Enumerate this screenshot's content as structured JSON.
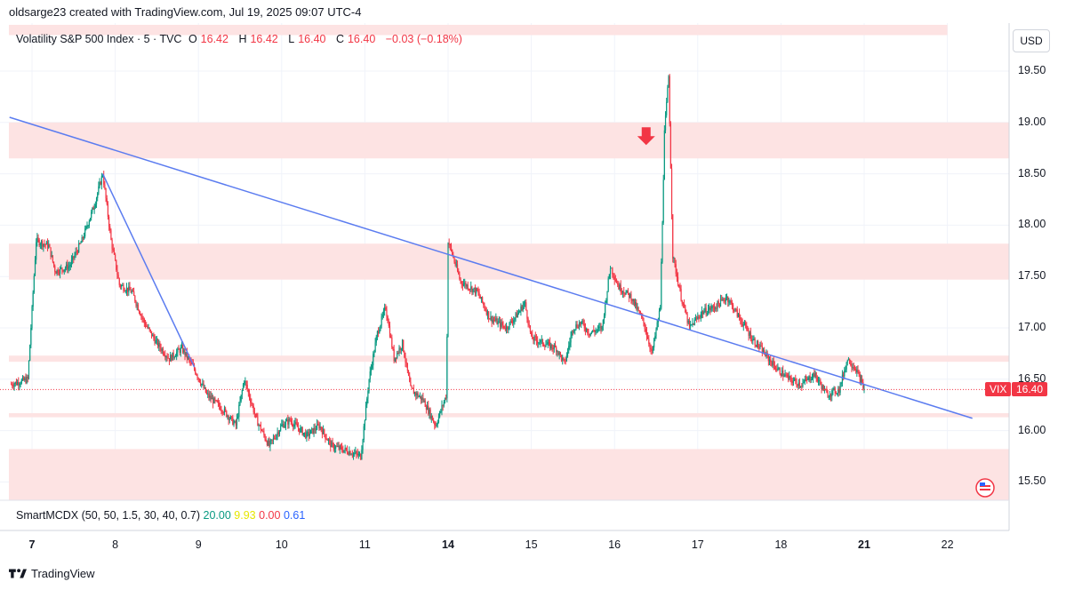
{
  "credit_line": "oldsarge23 created with TradingView.com, Jul 19, 2025 09:07 UTC-4",
  "legend": {
    "symbol": "Volatility S&P 500 Index · 5 · TVC",
    "o_key": "O",
    "o_val": "16.42",
    "h_key": "H",
    "h_val": "16.42",
    "l_key": "L",
    "l_val": "16.40",
    "c_key": "C",
    "c_val": "16.40",
    "change": "−0.03 (−0.18%)"
  },
  "indicator": {
    "name": "SmartMCDX (50, 50, 1.5, 30, 40, 0.7)",
    "v1": "20.00",
    "v2": "9.93",
    "v3": "0.00",
    "v4": "0.61",
    "colors": [
      "#089981",
      "#e6e600",
      "#f23645",
      "#2962ff"
    ]
  },
  "currency_button": "USD",
  "last_price_tag": {
    "symbol": "VIX",
    "price": "16.40"
  },
  "brand_name": "TradingView",
  "colors": {
    "up": "#089981",
    "down": "#f23645",
    "zone": "#fde3e3",
    "trend": "#5b7cf0",
    "grid": "#f0f3fa"
  },
  "chart_data": {
    "type": "candlestick",
    "symbol": "VIX",
    "timeframe": "5",
    "y_range": [
      15.35,
      19.75
    ],
    "y_ticks": [
      "19.50",
      "19.00",
      "18.50",
      "18.00",
      "17.50",
      "17.00",
      "16.50",
      "16.00",
      "15.50"
    ],
    "x_ticks": [
      {
        "label": "7",
        "bold": true,
        "day": 0
      },
      {
        "label": "8",
        "bold": false,
        "day": 1
      },
      {
        "label": "9",
        "bold": false,
        "day": 2
      },
      {
        "label": "10",
        "bold": false,
        "day": 3
      },
      {
        "label": "11",
        "bold": false,
        "day": 4
      },
      {
        "label": "14",
        "bold": true,
        "day": 5
      },
      {
        "label": "15",
        "bold": false,
        "day": 6
      },
      {
        "label": "16",
        "bold": false,
        "day": 7
      },
      {
        "label": "17",
        "bold": false,
        "day": 8
      },
      {
        "label": "18",
        "bold": false,
        "day": 9
      },
      {
        "label": "21",
        "bold": true,
        "day": 10
      },
      {
        "label": "22",
        "bold": false,
        "day": 11
      }
    ],
    "price_path": [
      [
        -0.25,
        16.45
      ],
      [
        -0.05,
        16.5
      ],
      [
        0.05,
        17.85
      ],
      [
        0.2,
        17.8
      ],
      [
        0.28,
        17.55
      ],
      [
        0.45,
        17.6
      ],
      [
        0.6,
        17.85
      ],
      [
        0.75,
        18.2
      ],
      [
        0.85,
        18.5
      ],
      [
        0.95,
        17.85
      ],
      [
        1.05,
        17.42
      ],
      [
        1.2,
        17.35
      ],
      [
        1.35,
        17.05
      ],
      [
        1.5,
        16.85
      ],
      [
        1.65,
        16.7
      ],
      [
        1.8,
        16.8
      ],
      [
        1.95,
        16.6
      ],
      [
        2.1,
        16.35
      ],
      [
        2.3,
        16.2
      ],
      [
        2.45,
        16.05
      ],
      [
        2.55,
        16.5
      ],
      [
        2.7,
        16.1
      ],
      [
        2.85,
        15.85
      ],
      [
        3.0,
        16.05
      ],
      [
        3.1,
        16.1
      ],
      [
        3.3,
        15.95
      ],
      [
        3.45,
        16.05
      ],
      [
        3.6,
        15.85
      ],
      [
        3.8,
        15.8
      ],
      [
        3.95,
        15.75
      ],
      [
        4.05,
        16.5
      ],
      [
        4.15,
        16.95
      ],
      [
        4.25,
        17.2
      ],
      [
        4.35,
        16.7
      ],
      [
        4.45,
        16.85
      ],
      [
        4.55,
        16.4
      ],
      [
        4.7,
        16.3
      ],
      [
        4.85,
        16.05
      ],
      [
        4.98,
        16.35
      ],
      [
        5.0,
        17.85
      ],
      [
        5.15,
        17.45
      ],
      [
        5.35,
        17.35
      ],
      [
        5.5,
        17.1
      ],
      [
        5.7,
        17.0
      ],
      [
        5.85,
        17.15
      ],
      [
        5.92,
        17.25
      ],
      [
        6.0,
        16.9
      ],
      [
        6.15,
        16.85
      ],
      [
        6.3,
        16.8
      ],
      [
        6.4,
        16.65
      ],
      [
        6.5,
        17.0
      ],
      [
        6.6,
        17.05
      ],
      [
        6.7,
        16.95
      ],
      [
        6.85,
        17.0
      ],
      [
        6.95,
        17.6
      ],
      [
        7.05,
        17.4
      ],
      [
        7.2,
        17.3
      ],
      [
        7.35,
        17.05
      ],
      [
        7.45,
        16.75
      ],
      [
        7.55,
        17.2
      ],
      [
        7.6,
        18.9
      ],
      [
        7.65,
        19.45
      ],
      [
        7.7,
        17.7
      ],
      [
        7.8,
        17.3
      ],
      [
        7.9,
        17.0
      ],
      [
        8.05,
        17.15
      ],
      [
        8.2,
        17.2
      ],
      [
        8.35,
        17.3
      ],
      [
        8.5,
        17.1
      ],
      [
        8.65,
        16.9
      ],
      [
        8.8,
        16.75
      ],
      [
        8.95,
        16.6
      ],
      [
        9.1,
        16.5
      ],
      [
        9.25,
        16.45
      ],
      [
        9.4,
        16.55
      ],
      [
        9.55,
        16.35
      ],
      [
        9.7,
        16.4
      ],
      [
        9.8,
        16.7
      ],
      [
        9.9,
        16.6
      ],
      [
        10.0,
        16.4
      ]
    ],
    "trendlines": [
      {
        "from": [
          -0.27,
          19.05
        ],
        "to": [
          11.3,
          16.12
        ]
      },
      {
        "from": [
          0.85,
          18.5
        ],
        "to": [
          1.95,
          16.62
        ]
      }
    ],
    "zones": [
      {
        "low": 19.85,
        "high": 19.95,
        "x_end": 11.0
      },
      {
        "low": 18.65,
        "high": 19.0
      },
      {
        "low": 17.47,
        "high": 17.82
      },
      {
        "low": 16.67,
        "high": 16.73
      },
      {
        "low": 16.13,
        "high": 16.17
      },
      {
        "low": 15.32,
        "high": 15.82
      }
    ],
    "last_price": 16.4,
    "annotations": [
      {
        "type": "arrow-down",
        "x": 7.38,
        "y": 18.78,
        "color": "#f23645"
      }
    ]
  }
}
